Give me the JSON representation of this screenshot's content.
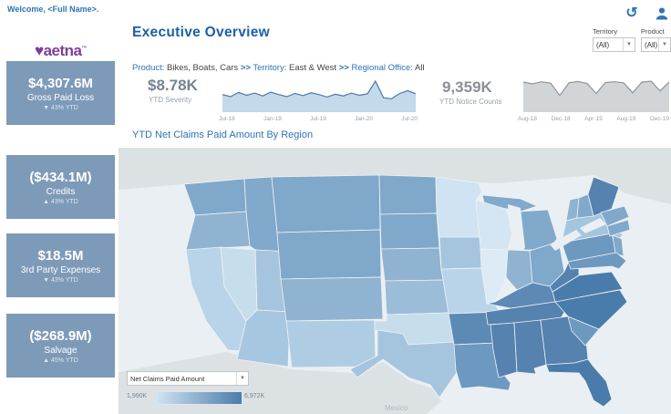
{
  "header": {
    "welcome": "Welcome, <Full Name>.",
    "logo": {
      "heart": "♥",
      "text": "aetna",
      "tm": "™"
    },
    "title": "Executive Overview",
    "toolbar": {
      "history_icon_glyph": "↺"
    },
    "territory_filter": {
      "label": "Territory",
      "value": "(All)",
      "caret": "▼"
    },
    "product_filter": {
      "label": "Product",
      "value": "(All)",
      "caret": "▼"
    }
  },
  "breadcrumb": {
    "product_label": "Product:",
    "product_value": "Bikes, Boats, Cars",
    "separator": ">>",
    "territory_label": "Territory:",
    "territory_value": "East & West",
    "office_label": "Regional Office:",
    "office_value": "All"
  },
  "kpis": [
    {
      "value": "$4,307.6M",
      "label": "Gross Paid Loss",
      "delta": "▼ 43% YTD"
    },
    {
      "value": "($434.1M)",
      "label": "Credits",
      "delta": "▲ 43% YTD"
    },
    {
      "value": "$18.5M",
      "label": "3rd Party Expenses",
      "delta": "▼ 43% YTD"
    },
    {
      "value": "($268.9M)",
      "label": "Salvage",
      "delta": "▲ 45% YTD"
    }
  ],
  "severity": {
    "value": "$8.78K",
    "label": "YTD Severity"
  },
  "notices": {
    "value": "9,359K",
    "label": "YTD Notice Counts"
  },
  "map_section": {
    "title": "YTD Net Claims Paid Amount By Region",
    "measure_dropdown": "Net Claims Paid Amount",
    "dropdown_caret": "▼",
    "basemap_label": "Mexico",
    "legend": {
      "min": "1,990K",
      "max": "6,972K",
      "min_color": "#cfe3f2",
      "max_color": "#4a7cab"
    }
  },
  "chart_data": [
    {
      "type": "area",
      "title": "YTD Severity trend",
      "x_ticks": [
        "Jul-18",
        "Jan-19",
        "Jul-19",
        "Jan-20",
        "Jul-20"
      ],
      "values": [
        5.0,
        4.4,
        5.6,
        4.8,
        5.4,
        4.6,
        5.7,
        5.0,
        4.4,
        5.3,
        4.7,
        5.5,
        5.0,
        4.3,
        5.1,
        4.6,
        5.4,
        4.8,
        5.2,
        8.8,
        4.1,
        3.8,
        5.3,
        6.1,
        5.2
      ],
      "line_color": "#4e79a7",
      "fill_color": "#c3d9ec"
    },
    {
      "type": "area",
      "title": "YTD Notice Counts trend",
      "x_ticks": [
        "Aug-18",
        "Dec-18",
        "Apr-19",
        "Aug-19",
        "Dec-19"
      ],
      "values": [
        9.0,
        8.5,
        9.1,
        8.7,
        5.0,
        8.8,
        9.2,
        8.6,
        5.6,
        8.9,
        9.1,
        8.8,
        5.8,
        9.0,
        9.3,
        6.4,
        9.0
      ],
      "line_color": "#8f9499",
      "fill_color": "#d2d5d8"
    },
    {
      "type": "choropleth",
      "title": "YTD Net Claims Paid Amount By Region",
      "measure": "Net Claims Paid Amount",
      "color_scale": {
        "min_label": "1,990K",
        "max_label": "6,972K"
      }
    }
  ],
  "map": {
    "states": [
      {
        "id": "WA",
        "color": "#7fa8cb"
      },
      {
        "id": "OR",
        "color": "#8fb3d1"
      },
      {
        "id": "CA",
        "color": "#b9d4e8"
      },
      {
        "id": "NV",
        "color": "#c6ddec"
      },
      {
        "id": "ID",
        "color": "#81a9cc"
      },
      {
        "id": "UT",
        "color": "#a5c5de"
      },
      {
        "id": "AZ",
        "color": "#a7c6df"
      },
      {
        "id": "MT",
        "color": "#7fa8cb"
      },
      {
        "id": "WY",
        "color": "#7fa8cb"
      },
      {
        "id": "CO",
        "color": "#8fb3d1"
      },
      {
        "id": "NM",
        "color": "#aecde2"
      },
      {
        "id": "ND",
        "color": "#7fa8cb"
      },
      {
        "id": "SD",
        "color": "#7fa8cb"
      },
      {
        "id": "NE",
        "color": "#8fb3d1"
      },
      {
        "id": "KS",
        "color": "#9bbdd8"
      },
      {
        "id": "OK",
        "color": "#c6ddec"
      },
      {
        "id": "TX",
        "color": "#a5c5de"
      },
      {
        "id": "MN",
        "color": "#cfe3f2"
      },
      {
        "id": "IA",
        "color": "#a5c5de"
      },
      {
        "id": "MO",
        "color": "#b9d4e8"
      },
      {
        "id": "AR",
        "color": "#5d8ab5"
      },
      {
        "id": "LA",
        "color": "#6d99c0"
      },
      {
        "id": "WI",
        "color": "#d4e6f3"
      },
      {
        "id": "IL",
        "color": "#dcebf5"
      },
      {
        "id": "IN",
        "color": "#8fb3d1"
      },
      {
        "id": "MI",
        "color": "#81a9cc"
      },
      {
        "id": "OH",
        "color": "#7fa8cb"
      },
      {
        "id": "KY",
        "color": "#5d8ab5"
      },
      {
        "id": "TN",
        "color": "#5582ae"
      },
      {
        "id": "MS",
        "color": "#5582ae"
      },
      {
        "id": "AL",
        "color": "#5582ae"
      },
      {
        "id": "GA",
        "color": "#5582ae"
      },
      {
        "id": "FL",
        "color": "#4a7cab"
      },
      {
        "id": "SC",
        "color": "#6d99c0"
      },
      {
        "id": "NC",
        "color": "#4a7cab"
      },
      {
        "id": "VA",
        "color": "#4a7cab"
      },
      {
        "id": "WV",
        "color": "#5582ae"
      },
      {
        "id": "PA",
        "color": "#6d99c0"
      },
      {
        "id": "NY",
        "color": "#a5c5de"
      },
      {
        "id": "NJ",
        "color": "#7fa8cb"
      },
      {
        "id": "MD",
        "color": "#6d99c0"
      },
      {
        "id": "VT",
        "color": "#8fb3d1"
      },
      {
        "id": "NH",
        "color": "#81a9cc"
      },
      {
        "id": "ME",
        "color": "#5582ae"
      },
      {
        "id": "MA",
        "color": "#7fa8cb"
      },
      {
        "id": "CT",
        "color": "#7fa8cb"
      }
    ]
  }
}
